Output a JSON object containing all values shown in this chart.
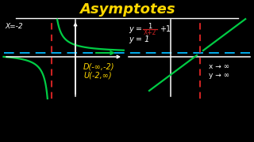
{
  "title": "Asymptotes",
  "title_color": "#FFD700",
  "bg_color": "#000000",
  "white": "#FFFFFF",
  "yellow": "#FFD700",
  "green": "#00CC44",
  "cyan": "#00BBFF",
  "red_dashed": "#CC2222",
  "x_eq": "X=-2",
  "y_eq": "y = 1",
  "domain_line1": "D(-∞,-2)",
  "domain_line2": "U(-2,∞)",
  "arrow_text1": "x → ∞",
  "arrow_text2": "y → ∞",
  "title_fontsize": 13,
  "label_fontsize": 6.5,
  "eq_fontsize": 7
}
